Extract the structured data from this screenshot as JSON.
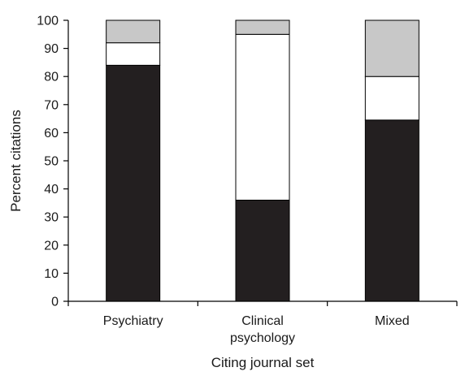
{
  "chart_data": {
    "type": "bar",
    "stacked": true,
    "categories": [
      [
        "Psychiatry"
      ],
      [
        "Clinical",
        "psychology"
      ],
      [
        "Mixed"
      ]
    ],
    "series": [
      {
        "values": [
          84,
          36,
          64.5
        ],
        "color": "#231f20"
      },
      {
        "values": [
          8,
          59,
          15.5
        ],
        "color": "#ffffff"
      },
      {
        "values": [
          8,
          5,
          20
        ],
        "color": "#c8c8c8"
      }
    ],
    "xlabel": "Citing journal set",
    "ylabel": "Percent citations",
    "ylim": [
      0,
      100
    ],
    "yticks": [
      0,
      10,
      20,
      30,
      40,
      50,
      60,
      70,
      80,
      90,
      100
    ],
    "grid": false,
    "legend": "none"
  }
}
